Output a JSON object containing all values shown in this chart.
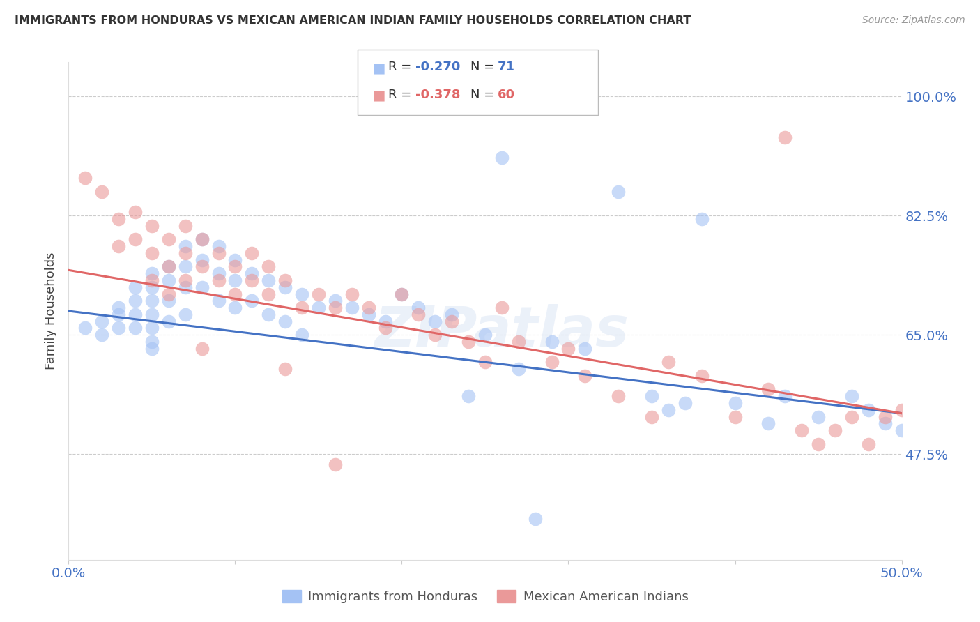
{
  "title": "IMMIGRANTS FROM HONDURAS VS MEXICAN AMERICAN INDIAN FAMILY HOUSEHOLDS CORRELATION CHART",
  "source": "Source: ZipAtlas.com",
  "ylabel": "Family Households",
  "ytick_vals": [
    0.475,
    0.65,
    0.825,
    1.0
  ],
  "ytick_labels": [
    "47.5%",
    "65.0%",
    "82.5%",
    "100.0%"
  ],
  "xlim": [
    0.0,
    0.5
  ],
  "ylim": [
    0.32,
    1.05
  ],
  "blue_color": "#a4c2f4",
  "pink_color": "#ea9999",
  "line_blue": "#4472c4",
  "line_pink": "#e06666",
  "axis_label_color": "#4472c4",
  "watermark": "ZIPatlas",
  "blue_scatter_x": [
    0.01,
    0.02,
    0.02,
    0.03,
    0.03,
    0.03,
    0.04,
    0.04,
    0.04,
    0.04,
    0.05,
    0.05,
    0.05,
    0.05,
    0.05,
    0.05,
    0.05,
    0.06,
    0.06,
    0.06,
    0.06,
    0.07,
    0.07,
    0.07,
    0.07,
    0.08,
    0.08,
    0.08,
    0.09,
    0.09,
    0.09,
    0.1,
    0.1,
    0.1,
    0.11,
    0.11,
    0.12,
    0.12,
    0.13,
    0.13,
    0.14,
    0.14,
    0.15,
    0.16,
    0.17,
    0.18,
    0.19,
    0.2,
    0.21,
    0.22,
    0.23,
    0.24,
    0.25,
    0.27,
    0.29,
    0.31,
    0.35,
    0.36,
    0.37,
    0.4,
    0.42,
    0.43,
    0.45,
    0.47,
    0.48,
    0.49,
    0.5,
    0.26,
    0.33,
    0.38,
    0.28
  ],
  "blue_scatter_y": [
    0.66,
    0.67,
    0.65,
    0.69,
    0.68,
    0.66,
    0.72,
    0.7,
    0.68,
    0.66,
    0.74,
    0.72,
    0.7,
    0.68,
    0.66,
    0.64,
    0.63,
    0.75,
    0.73,
    0.7,
    0.67,
    0.78,
    0.75,
    0.72,
    0.68,
    0.79,
    0.76,
    0.72,
    0.78,
    0.74,
    0.7,
    0.76,
    0.73,
    0.69,
    0.74,
    0.7,
    0.73,
    0.68,
    0.72,
    0.67,
    0.71,
    0.65,
    0.69,
    0.7,
    0.69,
    0.68,
    0.67,
    0.71,
    0.69,
    0.67,
    0.68,
    0.56,
    0.65,
    0.6,
    0.64,
    0.63,
    0.56,
    0.54,
    0.55,
    0.55,
    0.52,
    0.56,
    0.53,
    0.56,
    0.54,
    0.52,
    0.51,
    0.91,
    0.86,
    0.82,
    0.38
  ],
  "pink_scatter_x": [
    0.01,
    0.02,
    0.03,
    0.03,
    0.04,
    0.04,
    0.05,
    0.05,
    0.05,
    0.06,
    0.06,
    0.06,
    0.07,
    0.07,
    0.07,
    0.08,
    0.08,
    0.09,
    0.09,
    0.1,
    0.1,
    0.11,
    0.11,
    0.12,
    0.12,
    0.13,
    0.14,
    0.15,
    0.16,
    0.17,
    0.18,
    0.19,
    0.2,
    0.21,
    0.22,
    0.23,
    0.24,
    0.25,
    0.27,
    0.29,
    0.31,
    0.33,
    0.35,
    0.38,
    0.4,
    0.44,
    0.47,
    0.49,
    0.26,
    0.3,
    0.36,
    0.42,
    0.45,
    0.48,
    0.5,
    0.08,
    0.13,
    0.16,
    0.46,
    0.43
  ],
  "pink_scatter_y": [
    0.88,
    0.86,
    0.82,
    0.78,
    0.83,
    0.79,
    0.81,
    0.77,
    0.73,
    0.79,
    0.75,
    0.71,
    0.81,
    0.77,
    0.73,
    0.79,
    0.75,
    0.77,
    0.73,
    0.75,
    0.71,
    0.77,
    0.73,
    0.75,
    0.71,
    0.73,
    0.69,
    0.71,
    0.69,
    0.71,
    0.69,
    0.66,
    0.71,
    0.68,
    0.65,
    0.67,
    0.64,
    0.61,
    0.64,
    0.61,
    0.59,
    0.56,
    0.53,
    0.59,
    0.53,
    0.51,
    0.53,
    0.53,
    0.69,
    0.63,
    0.61,
    0.57,
    0.49,
    0.49,
    0.54,
    0.63,
    0.6,
    0.46,
    0.51,
    0.94
  ]
}
